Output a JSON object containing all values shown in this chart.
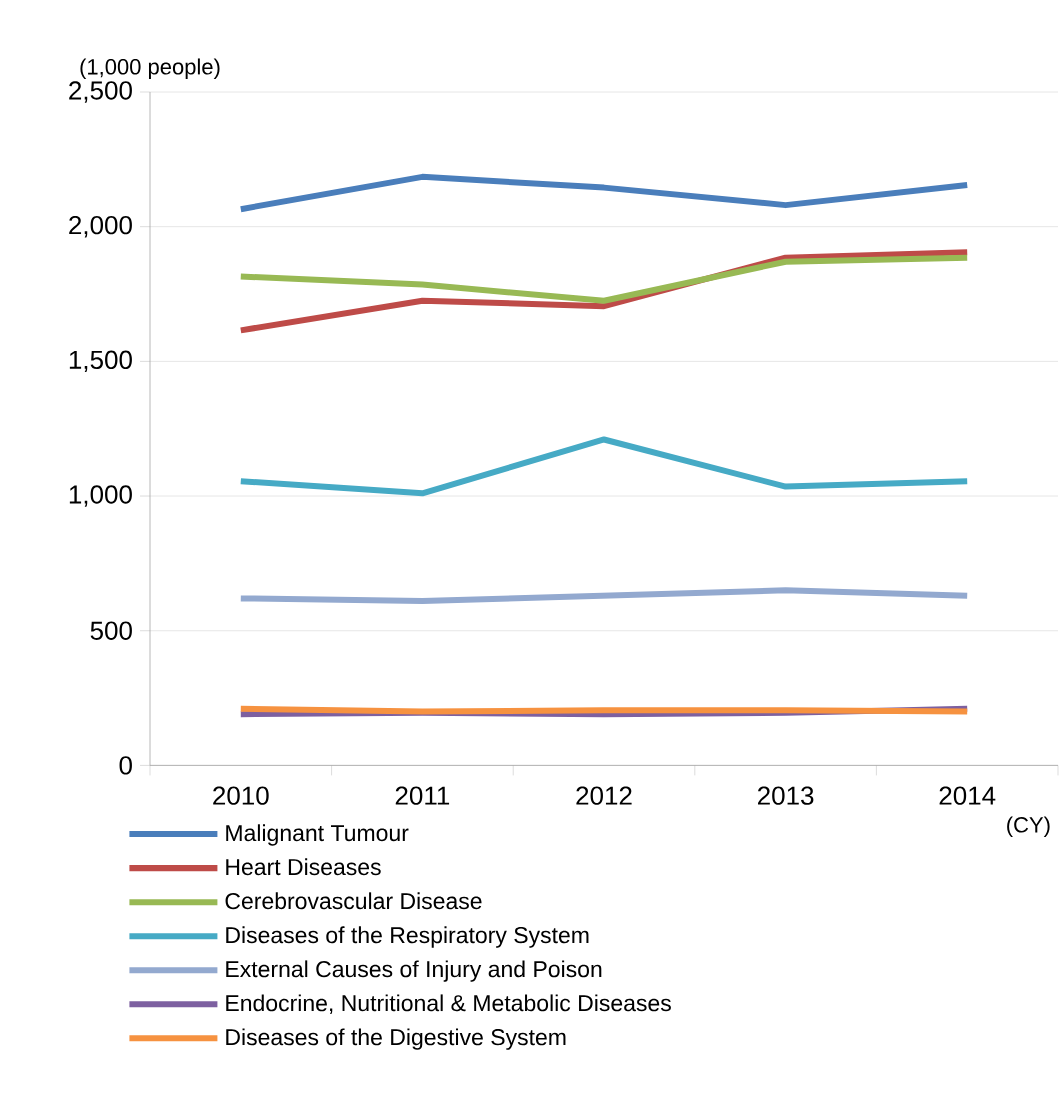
{
  "chart_data": {
    "type": "line",
    "ylabel": "(1,000 people)",
    "xlabel": "(CY)",
    "categories": [
      "2010",
      "2011",
      "2012",
      "2013",
      "2014"
    ],
    "ylim": [
      0,
      2500
    ],
    "yticks": [
      0,
      500,
      {
        "value": 1000,
        "label": "1,000"
      },
      {
        "value": 1500,
        "label": "1,500"
      },
      {
        "value": 2000,
        "label": "2,000"
      },
      {
        "value": 2500,
        "label": "2,500"
      }
    ],
    "grid": "y",
    "legend": "bottom",
    "marker": "none",
    "line_style": "solid",
    "series": [
      {
        "name": "Malignant Tumour",
        "color": "#4a7ebb",
        "values": [
          2065,
          2185,
          2145,
          2080,
          2155
        ]
      },
      {
        "name": "Heart Diseases",
        "color": "#be4b48",
        "values": [
          1615,
          1725,
          1705,
          1885,
          1905
        ]
      },
      {
        "name": "Cerebrovascular Disease",
        "color": "#98b954",
        "values": [
          1815,
          1785,
          1725,
          1870,
          1885
        ]
      },
      {
        "name": "Diseases of the Respiratory System",
        "color": "#46aac5",
        "values": [
          1055,
          1010,
          1210,
          1035,
          1055
        ]
      },
      {
        "name": "External Causes of Injury and Poison",
        "color": "#93a9cf",
        "values": [
          620,
          610,
          630,
          650,
          630
        ]
      },
      {
        "name": "Endocrine, Nutritional & Metabolic Diseases",
        "color": "#7d60a0",
        "values": [
          190,
          195,
          190,
          195,
          210
        ]
      },
      {
        "name": "Diseases of the Digestive System",
        "color": "#f69240",
        "values": [
          210,
          200,
          205,
          205,
          200
        ]
      }
    ]
  }
}
